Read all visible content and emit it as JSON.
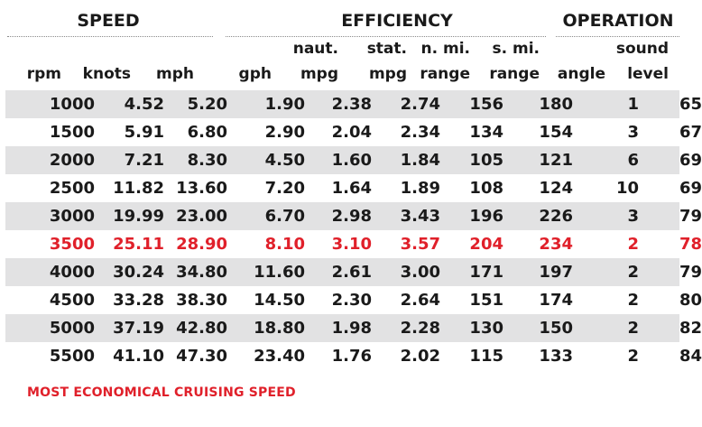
{
  "groups": {
    "speed": "SPEED",
    "efficiency": "EFFICIENCY",
    "operation": "OPERATION"
  },
  "headers": {
    "rpm": [
      "",
      "rpm"
    ],
    "knots": [
      "",
      "knots"
    ],
    "mph": [
      "",
      "mph"
    ],
    "gph": [
      "",
      "gph"
    ],
    "naut_mpg": [
      "naut.",
      "mpg"
    ],
    "stat_mpg": [
      "stat.",
      "mpg"
    ],
    "nmi_range": [
      "n. mi.",
      "range"
    ],
    "smi_range": [
      "s. mi.",
      "range"
    ],
    "angle": [
      "",
      "angle"
    ],
    "sound": [
      "sound",
      "level"
    ]
  },
  "rows": [
    [
      "1000",
      "4.52",
      "5.20",
      "1.90",
      "2.38",
      "2.74",
      "156",
      "180",
      "1",
      "65"
    ],
    [
      "1500",
      "5.91",
      "6.80",
      "2.90",
      "2.04",
      "2.34",
      "134",
      "154",
      "3",
      "67"
    ],
    [
      "2000",
      "7.21",
      "8.30",
      "4.50",
      "1.60",
      "1.84",
      "105",
      "121",
      "6",
      "69"
    ],
    [
      "2500",
      "11.82",
      "13.60",
      "7.20",
      "1.64",
      "1.89",
      "108",
      "124",
      "10",
      "69"
    ],
    [
      "3000",
      "19.99",
      "23.00",
      "6.70",
      "2.98",
      "3.43",
      "196",
      "226",
      "3",
      "79"
    ],
    [
      "3500",
      "25.11",
      "28.90",
      "8.10",
      "3.10",
      "3.57",
      "204",
      "234",
      "2",
      "78"
    ],
    [
      "4000",
      "30.24",
      "34.80",
      "11.60",
      "2.61",
      "3.00",
      "171",
      "197",
      "2",
      "79"
    ],
    [
      "4500",
      "33.28",
      "38.30",
      "14.50",
      "2.30",
      "2.64",
      "151",
      "174",
      "2",
      "80"
    ],
    [
      "5000",
      "37.19",
      "42.80",
      "18.80",
      "1.98",
      "2.28",
      "130",
      "150",
      "2",
      "82"
    ],
    [
      "5500",
      "41.10",
      "47.30",
      "23.40",
      "1.76",
      "2.02",
      "115",
      "133",
      "2",
      "84"
    ]
  ],
  "highlight_row": "3500",
  "footer": "MOST ECONOMICAL CRUISING SPEED",
  "colors": {
    "highlight": "#e0202a",
    "stripe": "#e2e2e3",
    "text": "#1a1a1a"
  }
}
